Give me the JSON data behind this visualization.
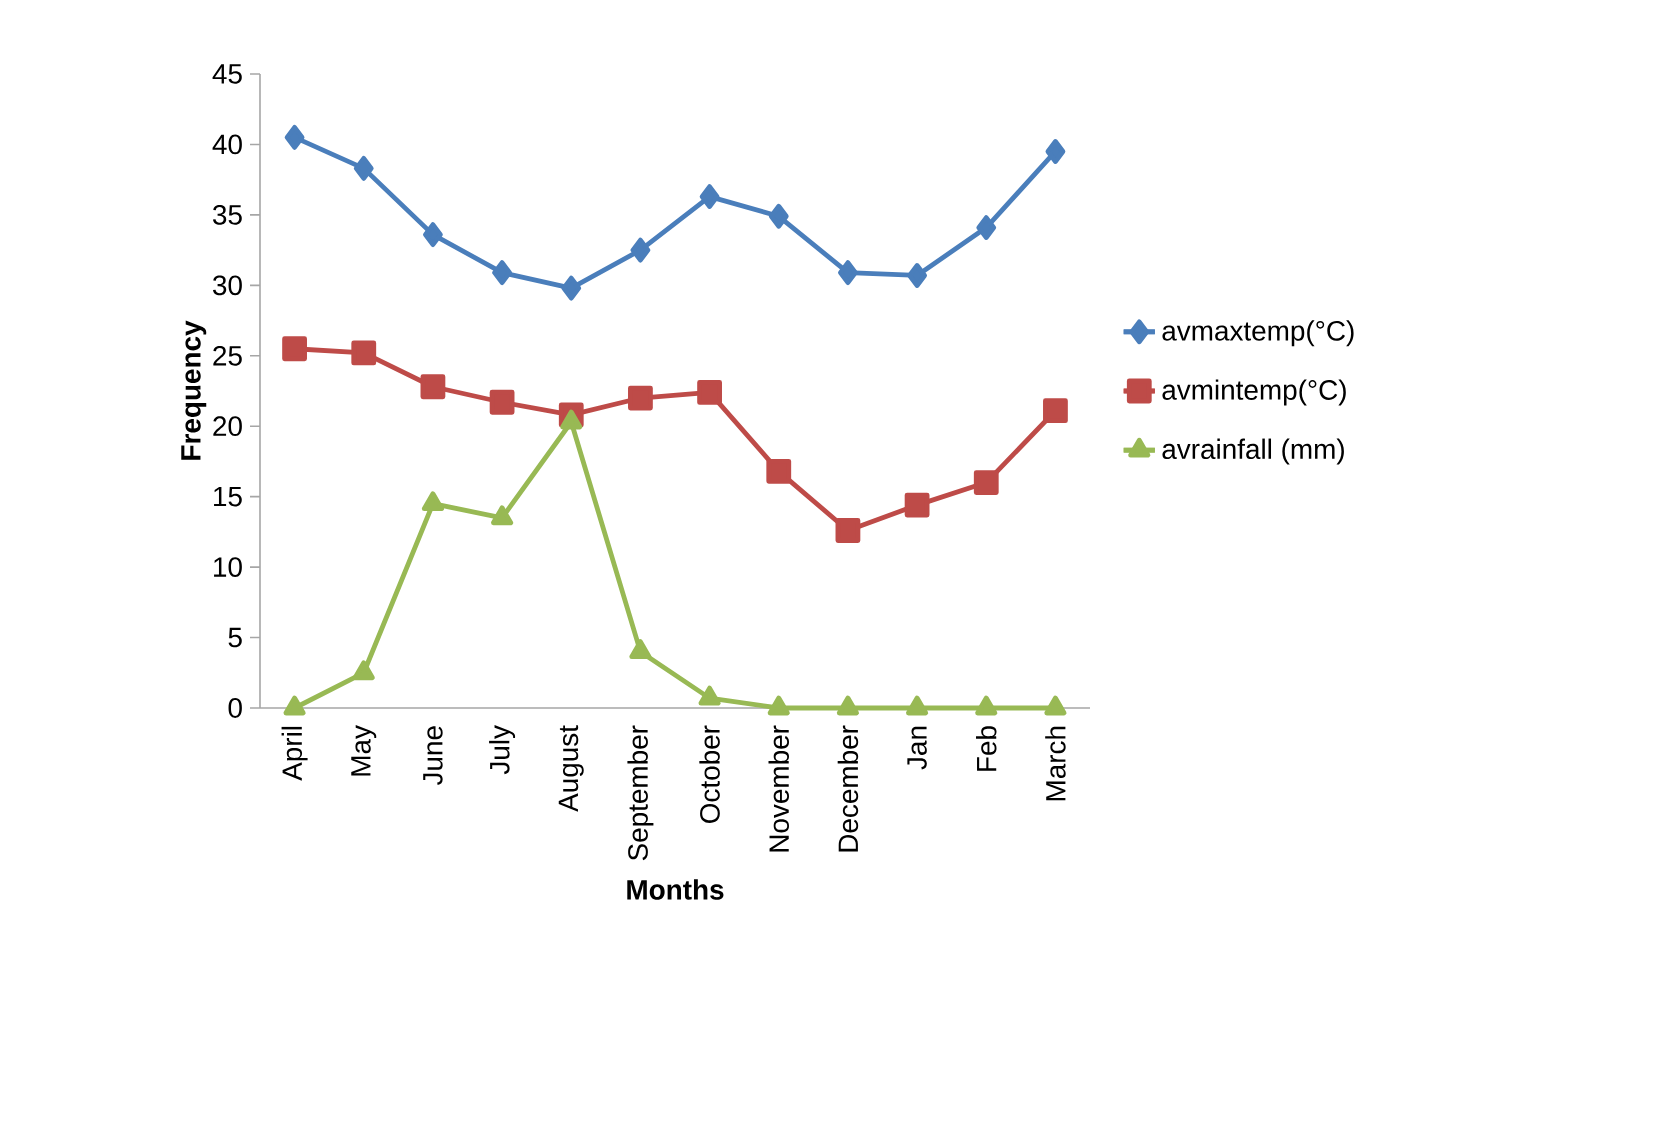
{
  "chart_data": {
    "type": "line",
    "xlabel": "Months",
    "ylabel": "Frequency",
    "categories": [
      "April",
      "May",
      "June",
      "July",
      "August",
      "September",
      "October",
      "November",
      "December",
      "Jan",
      "Feb",
      "March"
    ],
    "ylim": [
      0,
      45
    ],
    "yticks": [
      0,
      5,
      10,
      15,
      20,
      25,
      30,
      35,
      40,
      45
    ],
    "grid": false,
    "legend": "right",
    "line_style": "solid",
    "series": [
      {
        "name": "avmaxtemp(°C)",
        "color": "#4a7ebb",
        "marker": "diamond",
        "values": [
          40.5,
          38.3,
          33.6,
          30.9,
          29.8,
          32.5,
          36.3,
          34.9,
          30.9,
          30.7,
          34.1,
          39.5
        ]
      },
      {
        "name": "avmintemp(°C)",
        "color": "#be4b48",
        "marker": "square",
        "values": [
          25.5,
          25.2,
          22.8,
          21.7,
          20.8,
          22.0,
          22.4,
          16.8,
          12.6,
          14.4,
          16.0,
          21.1
        ]
      },
      {
        "name": "avrainfall (mm)",
        "color": "#98b954",
        "marker": "triangle",
        "values": [
          0,
          2.5,
          14.5,
          13.5,
          20.3,
          4,
          0.7,
          0,
          0,
          0,
          0,
          0
        ]
      }
    ]
  }
}
